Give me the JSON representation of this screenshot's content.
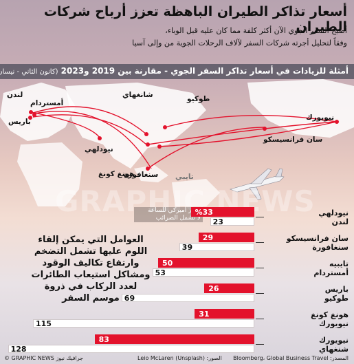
{
  "header": {
    "title": "أسعار تذاكر الطيران الباهظة تعزز أرباح شركات الطيران",
    "subtitle_line1": "أصبح السفر الجوي الآن أكثر كلفة مما كان عليه قبل الوباء،",
    "subtitle_line2": "وفقاً لتحليل أجرته شركات السفر لآلاف الرحلات الجوية من وإلى آسيا"
  },
  "band": {
    "title": "أمثلة للزيادات في أسعار تذاكر السفر الجوي - مقارنة بين 2019 و2023",
    "period": "(كانون الثاني - نيسان)"
  },
  "map": {
    "cities": {
      "london": "لندن",
      "amsterdam": "أمستردام",
      "paris": "باريس",
      "new_delhi": "نيودلهي",
      "shanghai": "شانغهاي",
      "tokyo": "طوكيو",
      "new_york": "نيويورك",
      "san_francisco": "سان فرانسيسكو",
      "hong_kong": "هونغ كونغ",
      "singapore": "سنغافورة",
      "taipei": "تايبي"
    },
    "colors": {
      "route": "#e3122c",
      "land": "#ffffff"
    }
  },
  "chart_data": {
    "type": "bar",
    "legend": {
      "line1": "دولار أميركي للساعة",
      "line2": "لا تشمل الضرائب"
    },
    "categories": [
      [
        "نيودلهي",
        "لندن"
      ],
      [
        "سان فرانسيسكو",
        "سنغافورة"
      ],
      [
        "تايبيه",
        "أمستردام"
      ],
      [
        "باريس",
        "طوكيو"
      ],
      [
        "هونغ كونغ",
        "نيويورك"
      ],
      [
        "نيويورك",
        "شنغهاي"
      ]
    ],
    "series": [
      {
        "name": "",
        "values": [
          23,
          39,
          53,
          69,
          115,
          128
        ]
      },
      {
        "values": [
          33,
          29,
          50,
          26,
          31,
          83
        ]
      }
    ],
    "labels": [
      "%33",
      "29",
      "50",
      "26",
      "31",
      "83"
    ],
    "colors": {
      "base": "#ffffff",
      "increase": "#e3122c"
    }
  },
  "factors": {
    "line1": "العوامل التي يمكن إلقاء",
    "line2": "اللوم عليها تشمل التضخم",
    "line3": "وارتفاع تكاليف الوقود",
    "line4": "ومشاكل استيعاب الطائرات",
    "line5": "لعدد الركاب في ذروة",
    "line6": "موسم السفر"
  },
  "footer": {
    "source": "المصدر: Bloomberg، Global Business Travel",
    "photo": "الصور: Leio McLaren (Unsplash)",
    "brand": "© GRAPHIC NEWS جرافيك نيوز"
  },
  "watermark": "GRAPHIC NEWS"
}
